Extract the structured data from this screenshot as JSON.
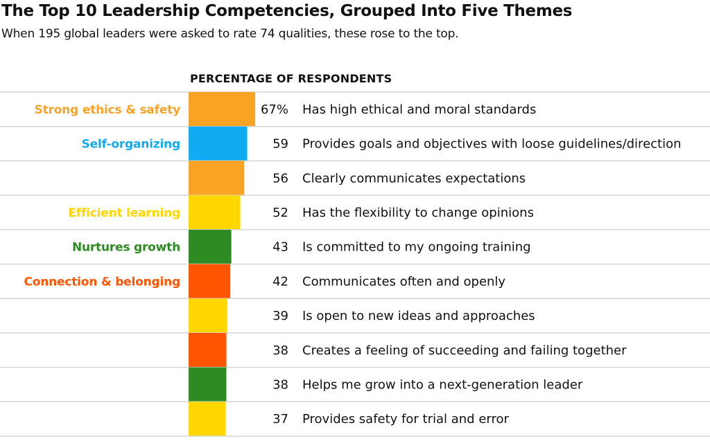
{
  "chart_data": {
    "type": "bar",
    "orientation": "horizontal",
    "title": "The Top 10 Leadership Competencies, Grouped Into Five Themes",
    "subtitle": "When 195 global leaders were asked to rate 74 qualities, these rose to the top.",
    "xlabel": "PERCENTAGE OF RESPONDENTS",
    "xlim": [
      0,
      100
    ],
    "grid": false,
    "themes": [
      {
        "name": "Strong ethics & safety",
        "color": "#F9A324"
      },
      {
        "name": "Self-organizing",
        "color": "#10ABF0"
      },
      {
        "name": "Efficient learning",
        "color": "#FFD600"
      },
      {
        "name": "Nurtures growth",
        "color": "#2E8A22"
      },
      {
        "name": "Connection & belonging",
        "color": "#FF5500"
      }
    ],
    "rows": [
      {
        "label": "Has high ethical and moral standards",
        "value": 67,
        "value_label": "67%",
        "theme": 0,
        "theme_label": "Strong ethics & safety"
      },
      {
        "label": "Provides goals and objectives with loose guidelines/direction",
        "value": 59,
        "value_label": "59",
        "theme": 1,
        "theme_label": "Self-organizing"
      },
      {
        "label": "Clearly communicates expectations",
        "value": 56,
        "value_label": "56",
        "theme": 0,
        "theme_label": ""
      },
      {
        "label": "Has the flexibility to change opinions",
        "value": 52,
        "value_label": "52",
        "theme": 2,
        "theme_label": "Efficient learning"
      },
      {
        "label": "Is committed to my ongoing training",
        "value": 43,
        "value_label": "43",
        "theme": 3,
        "theme_label": "Nurtures growth"
      },
      {
        "label": "Communicates often and openly",
        "value": 42,
        "value_label": "42",
        "theme": 4,
        "theme_label": "Connection & belonging"
      },
      {
        "label": "Is open to new ideas and approaches",
        "value": 39,
        "value_label": "39",
        "theme": 2,
        "theme_label": ""
      },
      {
        "label": "Creates a feeling of succeeding and failing together",
        "value": 38,
        "value_label": "38",
        "theme": 4,
        "theme_label": ""
      },
      {
        "label": "Helps me grow into a next-generation leader",
        "value": 38,
        "value_label": "38",
        "theme": 3,
        "theme_label": ""
      },
      {
        "label": "Provides safety for trial and error",
        "value": 37,
        "value_label": "37",
        "theme": 2,
        "theme_label": ""
      }
    ]
  }
}
